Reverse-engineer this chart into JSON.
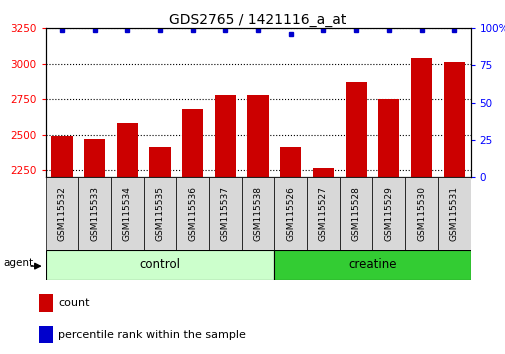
{
  "title": "GDS2765 / 1421116_a_at",
  "categories": [
    "GSM115532",
    "GSM115533",
    "GSM115534",
    "GSM115535",
    "GSM115536",
    "GSM115537",
    "GSM115538",
    "GSM115526",
    "GSM115527",
    "GSM115528",
    "GSM115529",
    "GSM115530",
    "GSM115531"
  ],
  "count_values": [
    2490,
    2470,
    2580,
    2415,
    2680,
    2780,
    2780,
    2415,
    2265,
    2870,
    2750,
    3040,
    3010
  ],
  "percentile_values": [
    99,
    99,
    99,
    99,
    99,
    99,
    99,
    96,
    99,
    99,
    99,
    99,
    99
  ],
  "ylim_left": [
    2200,
    3250
  ],
  "ylim_right": [
    0,
    100
  ],
  "yticks_left": [
    2250,
    2500,
    2750,
    3000,
    3250
  ],
  "yticks_right": [
    0,
    25,
    50,
    75,
    100
  ],
  "ytick_right_labels": [
    "0",
    "25",
    "50",
    "75",
    "100%"
  ],
  "bar_color": "#cc0000",
  "dot_color": "#0000cc",
  "control_n": 7,
  "creatine_n": 6,
  "control_color": "#ccffcc",
  "creatine_color": "#33cc33",
  "agent_label": "agent",
  "control_label": "control",
  "creatine_label": "creatine",
  "legend_count_label": "count",
  "legend_pct_label": "percentile rank within the sample",
  "bar_width": 0.65,
  "title_fontsize": 10,
  "tick_fontsize": 7.5,
  "cat_fontsize": 6.5
}
